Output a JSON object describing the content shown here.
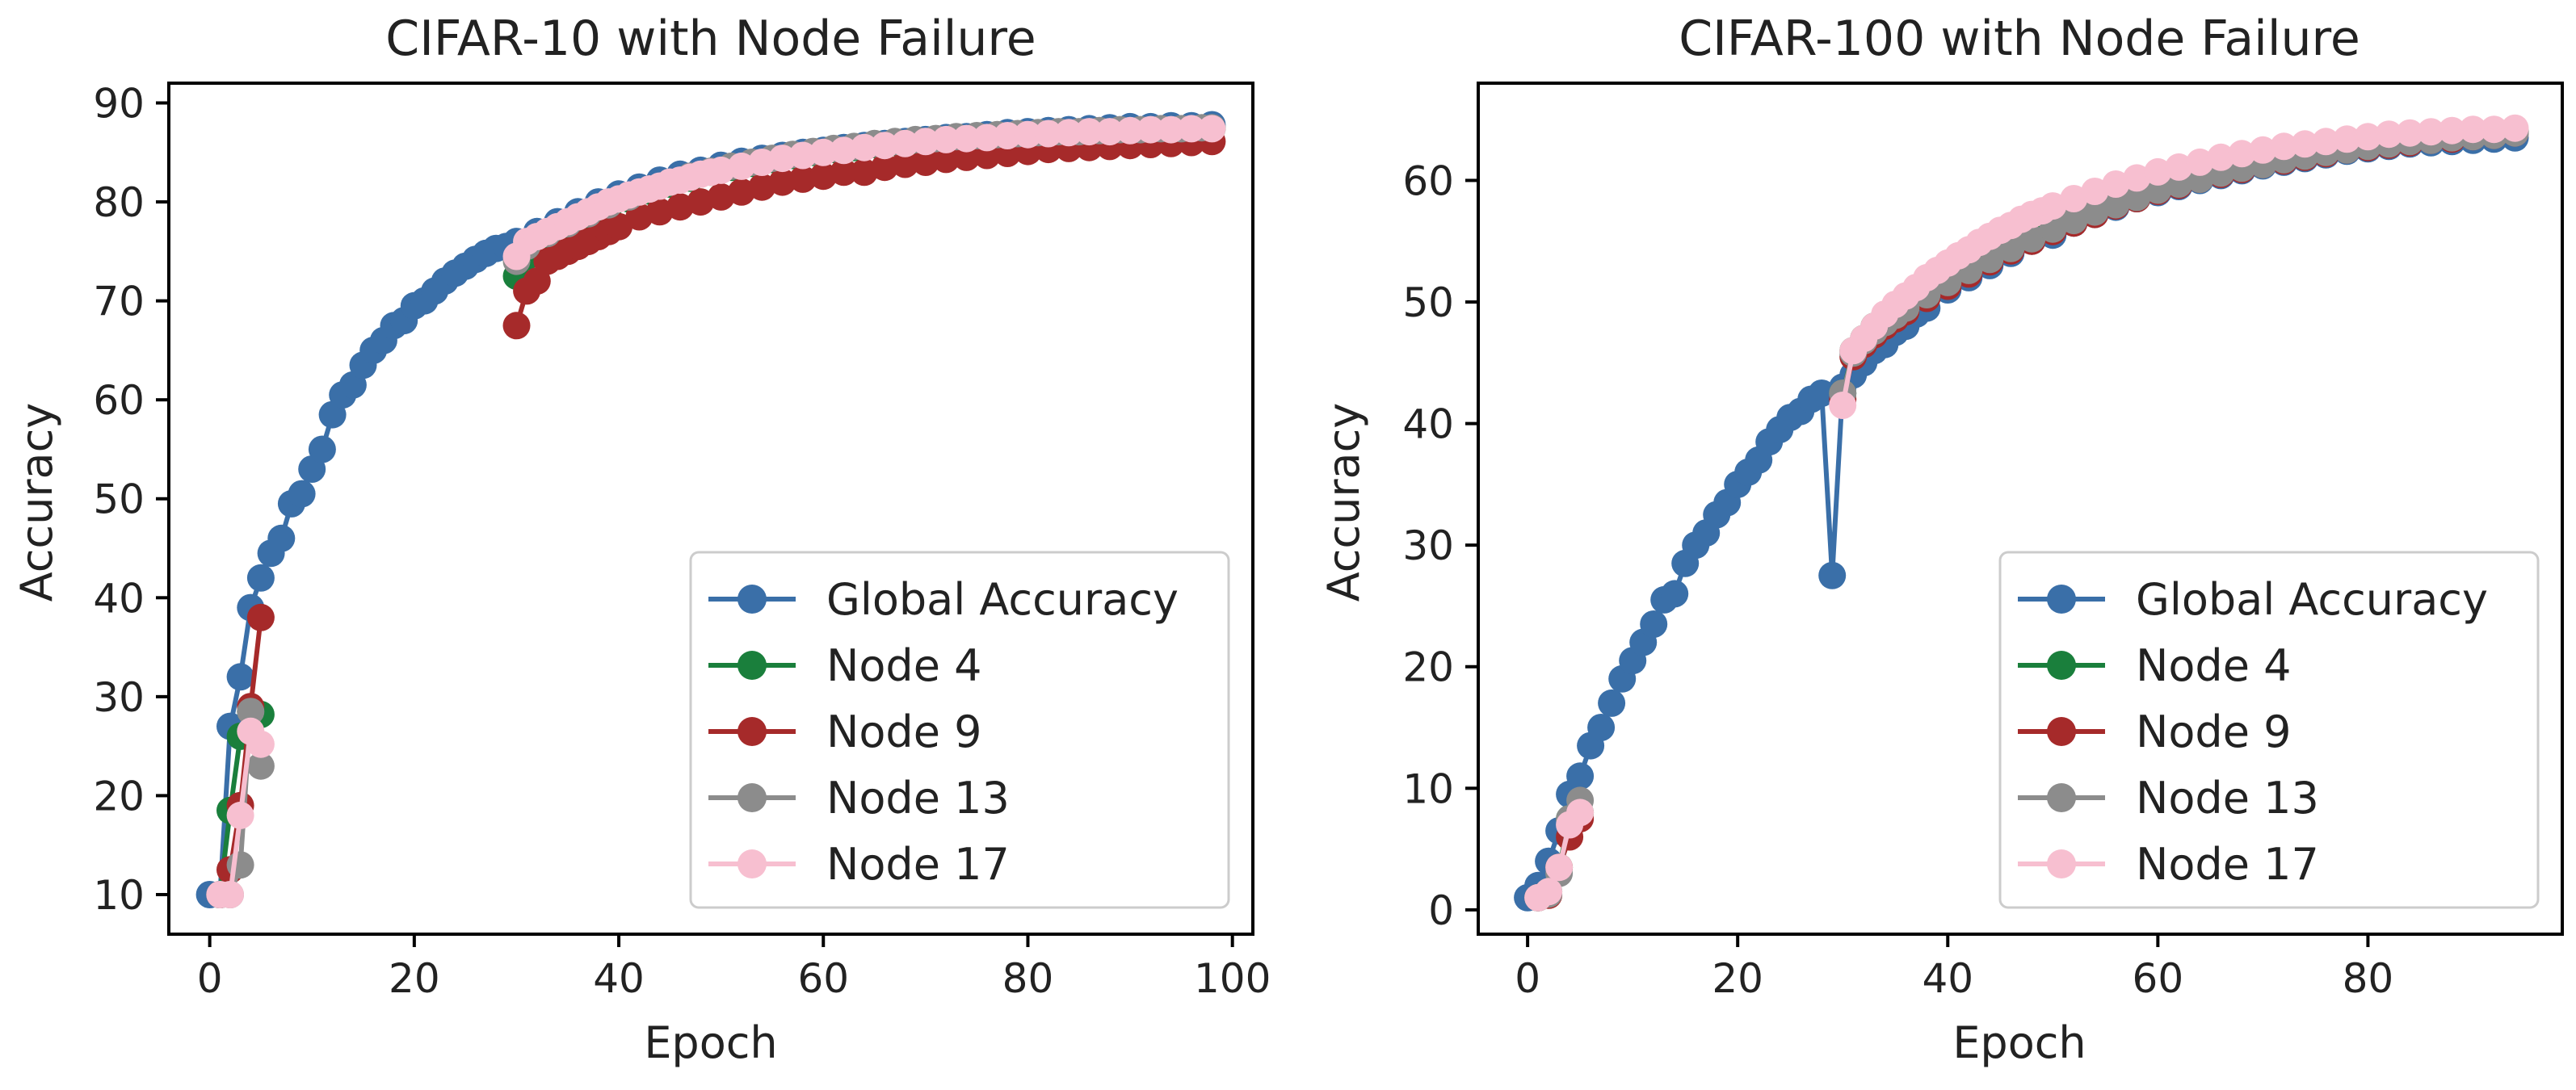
{
  "chart_data": [
    {
      "type": "line",
      "title": "CIFAR-10 with Node Failure",
      "xlabel": "Epoch",
      "ylabel": "Accuracy",
      "xlim": [
        -4,
        102
      ],
      "ylim": [
        6,
        92
      ],
      "xticks": [
        0,
        20,
        40,
        60,
        80,
        100
      ],
      "yticks": [
        10,
        20,
        30,
        40,
        50,
        60,
        70,
        80,
        90
      ],
      "legend_position": "lower-right",
      "series": [
        {
          "name": "Global Accuracy",
          "color": "#3a6fa8",
          "x": [
            0,
            1,
            2,
            3,
            4,
            5,
            6,
            7,
            8,
            9,
            10,
            11,
            12,
            13,
            14,
            15,
            16,
            17,
            18,
            19,
            20,
            21,
            22,
            23,
            24,
            25,
            26,
            27,
            28,
            29,
            30,
            32,
            34,
            36,
            38,
            40,
            42,
            44,
            46,
            48,
            50,
            52,
            54,
            56,
            58,
            60,
            62,
            64,
            66,
            68,
            70,
            72,
            74,
            76,
            78,
            80,
            82,
            84,
            86,
            88,
            90,
            92,
            94,
            96,
            98
          ],
          "y": [
            10,
            10,
            27,
            32,
            39,
            42,
            44.5,
            46,
            49.5,
            50.5,
            53,
            55,
            58.5,
            60.5,
            61.5,
            63.5,
            65,
            66,
            67.5,
            68,
            69.5,
            70,
            71,
            72,
            72.8,
            73.5,
            74.2,
            74.8,
            75.3,
            75.5,
            76,
            77,
            78,
            79,
            80,
            80.8,
            81.5,
            82.2,
            82.8,
            83.2,
            83.7,
            84.1,
            84.4,
            84.7,
            85,
            85.2,
            85.5,
            85.7,
            85.9,
            86.1,
            86.3,
            86.5,
            86.6,
            86.8,
            87,
            87.1,
            87.2,
            87.3,
            87.4,
            87.5,
            87.6,
            87.6,
            87.7,
            87.7,
            87.8
          ]
        },
        {
          "name": "Node 4",
          "color": "#1a7f3c",
          "x": [
            1,
            2,
            3,
            4,
            5,
            null,
            30,
            31,
            33,
            35,
            37,
            39,
            41,
            43,
            45,
            47,
            49,
            51,
            53,
            55,
            57,
            59,
            61,
            63,
            65,
            67,
            69,
            71,
            73,
            75,
            77,
            79,
            81,
            83,
            85,
            87,
            89,
            91,
            93,
            95,
            97,
            98
          ],
          "y": [
            10,
            18.5,
            26,
            28.5,
            28.2,
            null,
            72.5,
            74.5,
            76,
            77.3,
            78.4,
            79.4,
            80.3,
            81.1,
            81.8,
            82.4,
            83,
            83.5,
            83.9,
            84.3,
            84.7,
            85,
            85.3,
            85.5,
            85.8,
            86,
            86.2,
            86.3,
            86.5,
            86.6,
            86.7,
            86.8,
            86.9,
            87,
            87,
            87.1,
            87.2,
            87.2,
            87.3,
            87.3,
            87.4,
            87.4
          ]
        },
        {
          "name": "Node 9",
          "color": "#a62a2a",
          "x": [
            1,
            2,
            3,
            4,
            5,
            null,
            30,
            31,
            32,
            33,
            34,
            35,
            36,
            37,
            38,
            39,
            40,
            42,
            44,
            46,
            48,
            50,
            52,
            54,
            56,
            58,
            60,
            62,
            64,
            66,
            68,
            70,
            72,
            74,
            76,
            78,
            80,
            82,
            84,
            86,
            88,
            90,
            92,
            94,
            96,
            98
          ],
          "y": [
            10,
            12.5,
            19,
            29,
            38,
            null,
            67.5,
            71,
            72,
            74,
            74.5,
            75,
            75.5,
            76,
            76.5,
            77,
            77.5,
            78.5,
            79,
            79.5,
            80,
            80.5,
            81,
            81.5,
            82,
            82.3,
            82.6,
            83,
            83,
            83.5,
            83.8,
            84,
            84.3,
            84.5,
            84.7,
            84.9,
            85.1,
            85.3,
            85.4,
            85.5,
            85.6,
            85.7,
            85.8,
            85.9,
            86,
            86.1
          ]
        },
        {
          "name": "Node 13",
          "color": "#8c8c8c",
          "x": [
            1,
            2,
            3,
            4,
            5,
            null,
            30,
            31,
            33,
            35,
            37,
            39,
            41,
            43,
            45,
            47,
            49,
            51,
            53,
            55,
            57,
            59,
            61,
            63,
            65,
            67,
            69,
            71,
            73,
            75,
            77,
            79,
            81,
            83,
            85,
            87,
            89,
            91,
            93,
            95,
            97,
            98
          ],
          "y": [
            10,
            10,
            13,
            28.5,
            23,
            null,
            74,
            75.5,
            76.8,
            77.8,
            78.8,
            79.7,
            80.5,
            81.3,
            82,
            82.6,
            83.1,
            83.6,
            84,
            84.4,
            84.8,
            85.1,
            85.4,
            85.6,
            85.9,
            86.1,
            86.3,
            86.4,
            86.6,
            86.7,
            86.8,
            86.9,
            87,
            87.1,
            87.1,
            87.2,
            87.3,
            87.3,
            87.4,
            87.4,
            87.5,
            87.5
          ]
        },
        {
          "name": "Node 17",
          "color": "#f7bfd0",
          "x": [
            1,
            2,
            3,
            4,
            5,
            null,
            30,
            31,
            32,
            33,
            34,
            35,
            36,
            37,
            38,
            39,
            40,
            41,
            42,
            43,
            44,
            45,
            46,
            47,
            48,
            49,
            50,
            52,
            54,
            56,
            58,
            60,
            62,
            64,
            66,
            68,
            70,
            72,
            74,
            76,
            78,
            80,
            82,
            84,
            86,
            88,
            90,
            92,
            94,
            96,
            98
          ],
          "y": [
            10,
            10,
            18,
            26.5,
            25.2,
            null,
            74.5,
            76,
            76.5,
            77,
            77.5,
            78,
            78.5,
            79,
            79.5,
            80,
            80.3,
            80.7,
            81,
            81.3,
            81.6,
            82,
            82.2,
            82.5,
            82.8,
            83,
            83.2,
            83.6,
            84,
            84.4,
            84.7,
            85,
            85.2,
            85.5,
            85.7,
            85.9,
            86.1,
            86.3,
            86.4,
            86.5,
            86.7,
            86.8,
            86.9,
            87,
            87.1,
            87.1,
            87.2,
            87.3,
            87.3,
            87.4,
            87.4
          ]
        }
      ]
    },
    {
      "type": "line",
      "title": "CIFAR-100 with Node Failure",
      "xlabel": "Epoch",
      "ylabel": "Accuracy",
      "xlim": [
        -4.7,
        98.5
      ],
      "ylim": [
        -2,
        68
      ],
      "xticks": [
        0,
        20,
        40,
        60,
        80
      ],
      "yticks": [
        0,
        10,
        20,
        30,
        40,
        50,
        60
      ],
      "legend_position": "lower-right",
      "series": [
        {
          "name": "Global Accuracy",
          "color": "#3a6fa8",
          "x": [
            0,
            1,
            2,
            3,
            4,
            5,
            6,
            7,
            8,
            9,
            10,
            11,
            12,
            13,
            14,
            15,
            16,
            17,
            18,
            19,
            20,
            21,
            22,
            23,
            24,
            25,
            26,
            27,
            28,
            29,
            30,
            31,
            32,
            33,
            34,
            35,
            36,
            37,
            38,
            40,
            42,
            44,
            46,
            48,
            50,
            52,
            54,
            56,
            58,
            60,
            62,
            64,
            66,
            68,
            70,
            72,
            74,
            76,
            78,
            80,
            82,
            84,
            86,
            88,
            90,
            92,
            94
          ],
          "y": [
            1,
            2,
            4,
            6.5,
            9.5,
            11,
            13.5,
            15,
            17,
            19,
            20.5,
            22,
            23.5,
            25.5,
            26,
            28.5,
            30,
            31,
            32.5,
            33.5,
            35,
            36,
            37,
            38.5,
            39.5,
            40.5,
            41,
            42,
            42.5,
            27.5,
            43,
            44,
            45,
            46,
            46.5,
            47.5,
            48,
            49,
            49.5,
            51,
            52,
            53,
            54,
            55,
            55.5,
            56.5,
            57.2,
            57.8,
            58.5,
            59,
            59.5,
            60,
            60.4,
            60.8,
            61.2,
            61.5,
            61.8,
            62.1,
            62.4,
            62.6,
            62.8,
            63,
            63.1,
            63.2,
            63.3,
            63.4,
            63.5
          ]
        },
        {
          "name": "Node 4",
          "color": "#1a7f3c",
          "x": [
            1,
            2,
            3,
            4,
            5,
            null,
            30,
            31,
            32,
            33,
            34,
            35,
            36,
            38,
            40,
            42,
            44,
            46,
            48,
            50,
            52,
            54,
            56,
            58,
            60,
            62,
            64,
            66,
            68,
            70,
            72,
            74,
            76,
            78,
            80,
            82,
            84,
            86,
            88,
            90,
            92,
            94
          ],
          "y": [
            1,
            1.5,
            3.5,
            7.5,
            8,
            null,
            42.5,
            46,
            47,
            48,
            48.5,
            49,
            49.5,
            50.5,
            51.5,
            52.5,
            53.5,
            54.5,
            55.3,
            56,
            56.7,
            57.4,
            58,
            58.6,
            59.2,
            59.7,
            60.2,
            60.6,
            61,
            61.4,
            61.7,
            62,
            62.3,
            62.6,
            62.8,
            63,
            63.2,
            63.4,
            63.5,
            63.7,
            63.8,
            64
          ]
        },
        {
          "name": "Node 9",
          "color": "#a62a2a",
          "x": [
            1,
            2,
            3,
            4,
            5,
            null,
            30,
            31,
            32,
            33,
            34,
            35,
            36,
            38,
            40,
            42,
            44,
            46,
            48,
            50,
            52,
            54,
            56,
            58,
            60,
            62,
            64,
            66,
            68,
            70,
            72,
            74,
            76,
            78,
            80,
            82,
            84,
            86,
            88,
            90,
            92,
            94
          ],
          "y": [
            1,
            1.2,
            3.5,
            6,
            7.5,
            null,
            42,
            45.5,
            46.5,
            47.3,
            48,
            48.6,
            49.2,
            50.3,
            51.3,
            52.3,
            53.3,
            54.2,
            55,
            55.8,
            56.5,
            57.2,
            57.9,
            58.5,
            59.1,
            59.6,
            60.1,
            60.5,
            60.9,
            61.3,
            61.6,
            61.9,
            62.2,
            62.5,
            62.7,
            62.9,
            63.1,
            63.3,
            63.4,
            63.6,
            63.7,
            63.9
          ]
        },
        {
          "name": "Node 13",
          "color": "#8c8c8c",
          "x": [
            1,
            2,
            3,
            4,
            5,
            null,
            30,
            31,
            32,
            33,
            34,
            35,
            36,
            38,
            40,
            42,
            44,
            46,
            48,
            50,
            52,
            54,
            56,
            58,
            60,
            62,
            64,
            66,
            68,
            70,
            72,
            74,
            76,
            78,
            80,
            82,
            84,
            86,
            88,
            90,
            92,
            94
          ],
          "y": [
            1,
            1.3,
            3,
            7.5,
            9,
            null,
            42.5,
            45.8,
            46.8,
            47.6,
            48.3,
            48.9,
            49.5,
            50.6,
            51.6,
            52.6,
            53.5,
            54.4,
            55.2,
            56,
            56.7,
            57.4,
            58,
            58.6,
            59.2,
            59.7,
            60.1,
            60.6,
            61,
            61.3,
            61.7,
            62,
            62.3,
            62.5,
            62.8,
            63,
            63.2,
            63.3,
            63.5,
            63.6,
            63.7,
            63.9
          ]
        },
        {
          "name": "Node 17",
          "color": "#f7bfd0",
          "x": [
            1,
            2,
            3,
            4,
            5,
            null,
            30,
            31,
            32,
            33,
            34,
            35,
            36,
            37,
            38,
            39,
            40,
            41,
            42,
            43,
            44,
            45,
            46,
            47,
            48,
            49,
            50,
            52,
            54,
            56,
            58,
            60,
            62,
            64,
            66,
            68,
            70,
            72,
            74,
            76,
            78,
            80,
            82,
            84,
            86,
            88,
            90,
            92,
            94
          ],
          "y": [
            1,
            1.5,
            3.5,
            7,
            8,
            null,
            41.5,
            46,
            47,
            48,
            49,
            49.8,
            50.5,
            51.2,
            52,
            52.6,
            53.2,
            53.8,
            54.3,
            54.9,
            55.4,
            55.9,
            56.3,
            56.8,
            57.2,
            57.5,
            57.9,
            58.5,
            59.1,
            59.7,
            60.2,
            60.7,
            61.1,
            61.5,
            61.9,
            62.2,
            62.5,
            62.8,
            63,
            63.2,
            63.4,
            63.6,
            63.8,
            63.9,
            64,
            64.1,
            64.2,
            64.2,
            64.3
          ]
        }
      ]
    }
  ]
}
